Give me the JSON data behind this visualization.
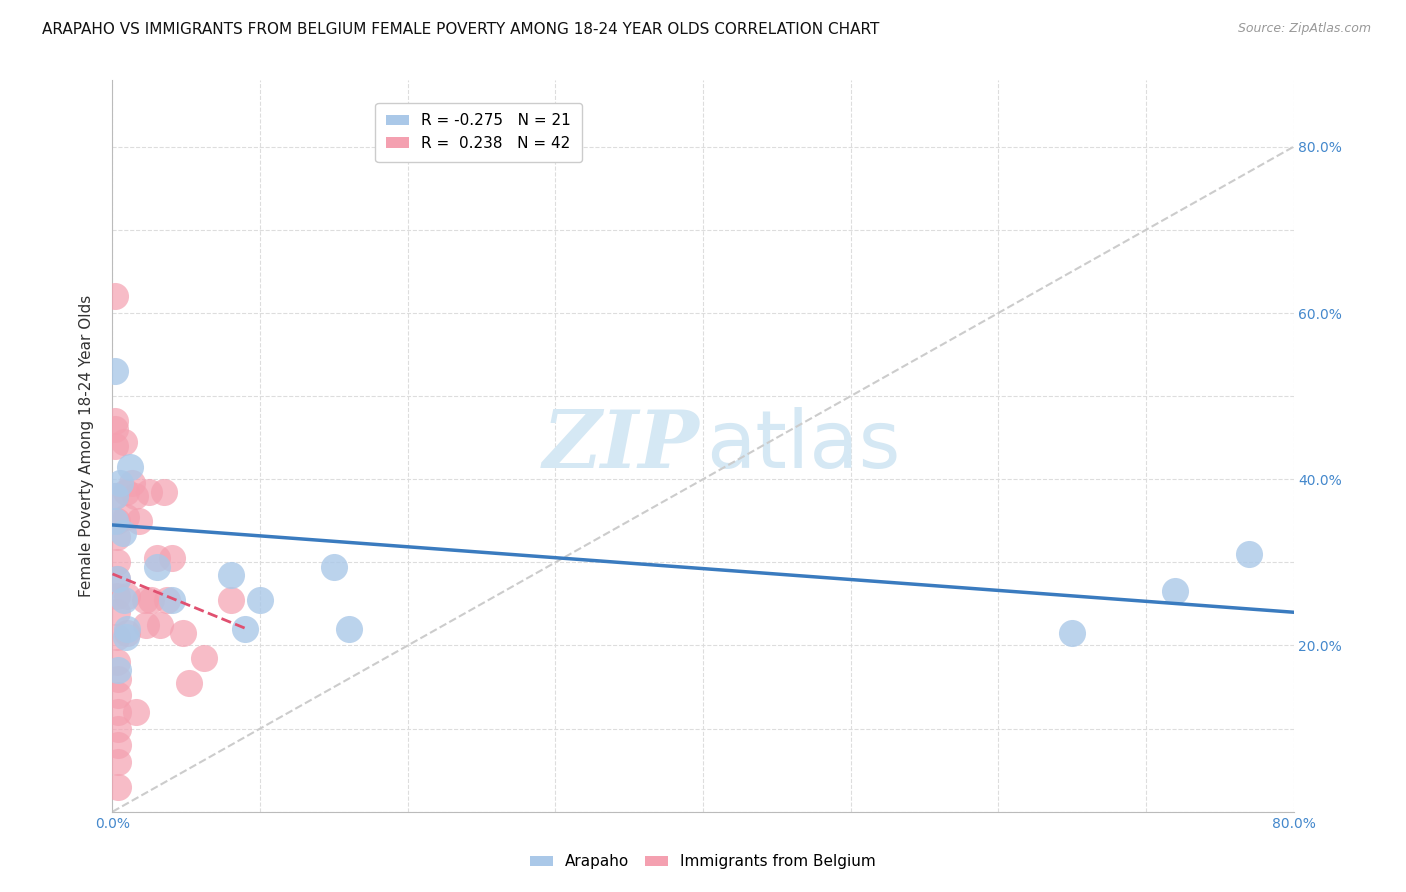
{
  "title": "ARAPAHO VS IMMIGRANTS FROM BELGIUM FEMALE POVERTY AMONG 18-24 YEAR OLDS CORRELATION CHART",
  "source": "Source: ZipAtlas.com",
  "ylabel": "Female Poverty Among 18-24 Year Olds",
  "xlim": [
    0.0,
    0.8
  ],
  "ylim": [
    0.0,
    0.88
  ],
  "arapaho_R": -0.275,
  "arapaho_N": 21,
  "belgium_R": 0.238,
  "belgium_N": 42,
  "arapaho_color": "#aac8e8",
  "arapaho_line_color": "#3a7bbf",
  "belgium_color": "#f4a0b0",
  "belgium_line_color": "#e05070",
  "identity_line_color": "#cccccc",
  "background_color": "#ffffff",
  "grid_color": "#dddddd",
  "right_ytick_labels": [
    "20.0%",
    "40.0%",
    "60.0%",
    "80.0%"
  ],
  "right_ytick_positions": [
    0.2,
    0.4,
    0.6,
    0.8
  ],
  "arapaho_points_x": [
    0.002,
    0.002,
    0.002,
    0.003,
    0.004,
    0.005,
    0.007,
    0.008,
    0.009,
    0.01,
    0.012,
    0.03,
    0.04,
    0.08,
    0.09,
    0.1,
    0.15,
    0.16,
    0.65,
    0.72,
    0.77
  ],
  "arapaho_points_y": [
    0.53,
    0.38,
    0.35,
    0.28,
    0.17,
    0.395,
    0.335,
    0.255,
    0.21,
    0.22,
    0.415,
    0.295,
    0.255,
    0.285,
    0.22,
    0.255,
    0.295,
    0.22,
    0.215,
    0.265,
    0.31
  ],
  "belgium_points_x": [
    0.002,
    0.002,
    0.002,
    0.002,
    0.002,
    0.003,
    0.003,
    0.003,
    0.003,
    0.003,
    0.003,
    0.003,
    0.003,
    0.004,
    0.004,
    0.004,
    0.004,
    0.004,
    0.004,
    0.004,
    0.008,
    0.009,
    0.009,
    0.01,
    0.01,
    0.013,
    0.015,
    0.016,
    0.018,
    0.022,
    0.023,
    0.025,
    0.026,
    0.03,
    0.032,
    0.035,
    0.037,
    0.04,
    0.048,
    0.052,
    0.062,
    0.08
  ],
  "belgium_points_y": [
    0.62,
    0.47,
    0.46,
    0.44,
    0.38,
    0.35,
    0.33,
    0.3,
    0.28,
    0.26,
    0.24,
    0.21,
    0.18,
    0.16,
    0.14,
    0.12,
    0.1,
    0.08,
    0.06,
    0.03,
    0.445,
    0.385,
    0.355,
    0.26,
    0.215,
    0.395,
    0.38,
    0.12,
    0.35,
    0.255,
    0.225,
    0.385,
    0.255,
    0.305,
    0.225,
    0.385,
    0.255,
    0.305,
    0.215,
    0.155,
    0.185,
    0.255
  ],
  "watermark_zip": "ZIP",
  "watermark_atlas": "atlas",
  "watermark_color": "#d5e8f4",
  "title_fontsize": 11,
  "axis_label_fontsize": 11,
  "tick_fontsize": 10,
  "legend_fontsize": 11,
  "source_fontsize": 9
}
